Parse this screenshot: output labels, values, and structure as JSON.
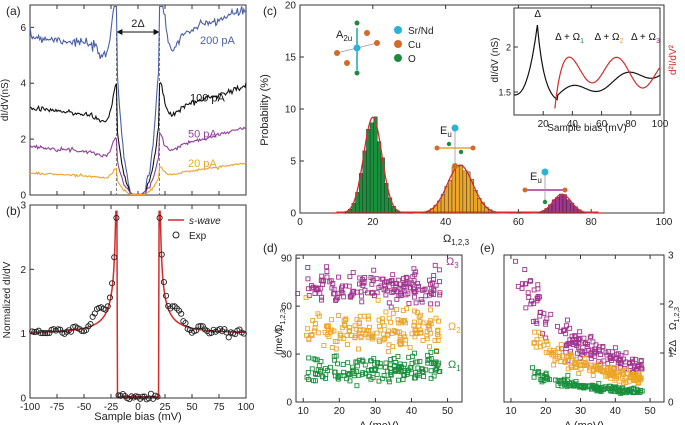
{
  "colors": {
    "blue": "#4a5fa8",
    "black": "#111111",
    "purple": "#8e3f9a",
    "orange": "#eba52a",
    "red": "#d42b2b",
    "green": "#1a8f3c",
    "magenta": "#a2358f",
    "teal": "#1aa7a7",
    "cyan": "#2ab3d6",
    "copper": "#d46a2a",
    "oxygen": "#1b8c3e"
  },
  "chart_data": [
    {
      "id": "a",
      "type": "line",
      "panel_label": "(a)",
      "xlabel": "",
      "ylabel": "dI/dV(nS)",
      "xlim": [
        -100,
        100
      ],
      "ylim": [
        0,
        6.8
      ],
      "yticks": [
        0,
        2,
        4,
        6
      ],
      "annotation": "2Δ",
      "gap_mV": 20,
      "series": [
        {
          "name": "200 pA",
          "color": "blue",
          "offset": 2.5,
          "amp": 2.7,
          "peak": 2.15,
          "bg": 1.2,
          "noise": 0.09
        },
        {
          "name": "100 pA",
          "color": "black",
          "offset": 1.3,
          "amp": 1.4,
          "peak": 1.15,
          "bg": 1.0,
          "noise": 0.05
        },
        {
          "name": "50 pA",
          "color": "purple",
          "offset": 0.7,
          "amp": 0.7,
          "peak": 0.6,
          "bg": 0.85,
          "noise": 0.03
        },
        {
          "name": "20 pA",
          "color": "orange",
          "offset": 0.28,
          "amp": 0.32,
          "peak": 0.3,
          "bg": 0.45,
          "noise": 0.02
        }
      ]
    },
    {
      "id": "b",
      "type": "line+scatter",
      "panel_label": "(b)",
      "xlabel": "Sample bias (mV)",
      "ylabel": "Normalized dI/dV",
      "xlim": [
        -100,
        100
      ],
      "ylim": [
        0,
        3
      ],
      "xticks": [
        -100,
        -75,
        -50,
        -25,
        0,
        25,
        50,
        75,
        100
      ],
      "yticks": [
        0,
        1,
        2,
        3
      ],
      "legend": [
        {
          "name": "s-wave",
          "style": "line"
        },
        {
          "name": "Exp",
          "style": "circle"
        }
      ],
      "gap_mV": 20
    },
    {
      "id": "c",
      "type": "bar",
      "panel_label": "(c)",
      "xlabel": "Ω1,2,3 (meV)",
      "ylabel": "Probability (%)",
      "xlim": [
        0,
        100
      ],
      "ylim": [
        0,
        20
      ],
      "xticks": [
        0,
        20,
        40,
        60,
        80,
        100
      ],
      "yticks": [
        0,
        5,
        10,
        15,
        20
      ],
      "modes": [
        {
          "name": "A2u",
          "label_main": "A",
          "label_sub": "2u",
          "center": 20,
          "sigma": 2.5,
          "peak": 9.2,
          "color": "green"
        },
        {
          "name": "Eu",
          "label_main": "E",
          "label_sub": "u",
          "center": 44,
          "sigma": 3.5,
          "peak": 4.6,
          "color": "orange"
        },
        {
          "name": "Eu",
          "label_main": "E",
          "label_sub": "u",
          "center": 72,
          "sigma": 2.5,
          "peak": 1.8,
          "color": "magenta"
        }
      ],
      "atom_legend": [
        {
          "name": "Sr/Nd",
          "color": "cyan"
        },
        {
          "name": "Cu",
          "color": "copper"
        },
        {
          "name": "O",
          "color": "oxygen"
        }
      ]
    },
    {
      "id": "c-inset",
      "type": "line",
      "xlabel": "Sample bias (mV)",
      "ylabel_left": "dI/dV (nS)",
      "ylabel_right": "d²I/dV²",
      "xlim": [
        0,
        100
      ],
      "xticks": [
        20,
        40,
        60,
        80,
        100
      ],
      "labels": [
        "Δ",
        "Δ + Ω",
        "Δ + Ω",
        "Δ + Ω"
      ],
      "label_subs": [
        "",
        "1",
        "2",
        "3"
      ],
      "label_colors": [
        "black",
        "green",
        "orange",
        "magenta"
      ],
      "label_x_mV": [
        16,
        35,
        62,
        87
      ]
    },
    {
      "id": "d",
      "type": "scatter",
      "panel_label": "(d)",
      "xlabel": "Δ (meV)",
      "ylabel": "Ω1,2,3 (meV)",
      "xlim": [
        8,
        54
      ],
      "ylim": [
        0,
        92
      ],
      "xticks": [
        10,
        20,
        30,
        40,
        50
      ],
      "yticks": [
        0,
        30,
        60,
        90
      ],
      "series": [
        {
          "name": "Ω3",
          "color": "magenta",
          "mean": 71,
          "spread": 5
        },
        {
          "name": "Ω2",
          "color": "orange",
          "mean": 45,
          "spread": 6
        },
        {
          "name": "Ω1",
          "color": "green",
          "mean": 20,
          "spread": 4
        }
      ]
    },
    {
      "id": "e",
      "type": "scatter",
      "panel_label": "(e)",
      "xlabel": "Δ (meV)",
      "ylabel": "Ω1,2,3/2Δ",
      "xlim": [
        8,
        54
      ],
      "ylim": [
        0,
        3
      ],
      "xticks": [
        10,
        20,
        30,
        40,
        50
      ],
      "yticks": [
        0,
        1,
        2,
        3
      ],
      "series": [
        {
          "name": "Ω3",
          "color": "magenta",
          "k": 35
        },
        {
          "name": "Ω2",
          "color": "orange",
          "k": 22.5
        },
        {
          "name": "Ω1",
          "color": "green",
          "k": 10
        }
      ]
    }
  ]
}
